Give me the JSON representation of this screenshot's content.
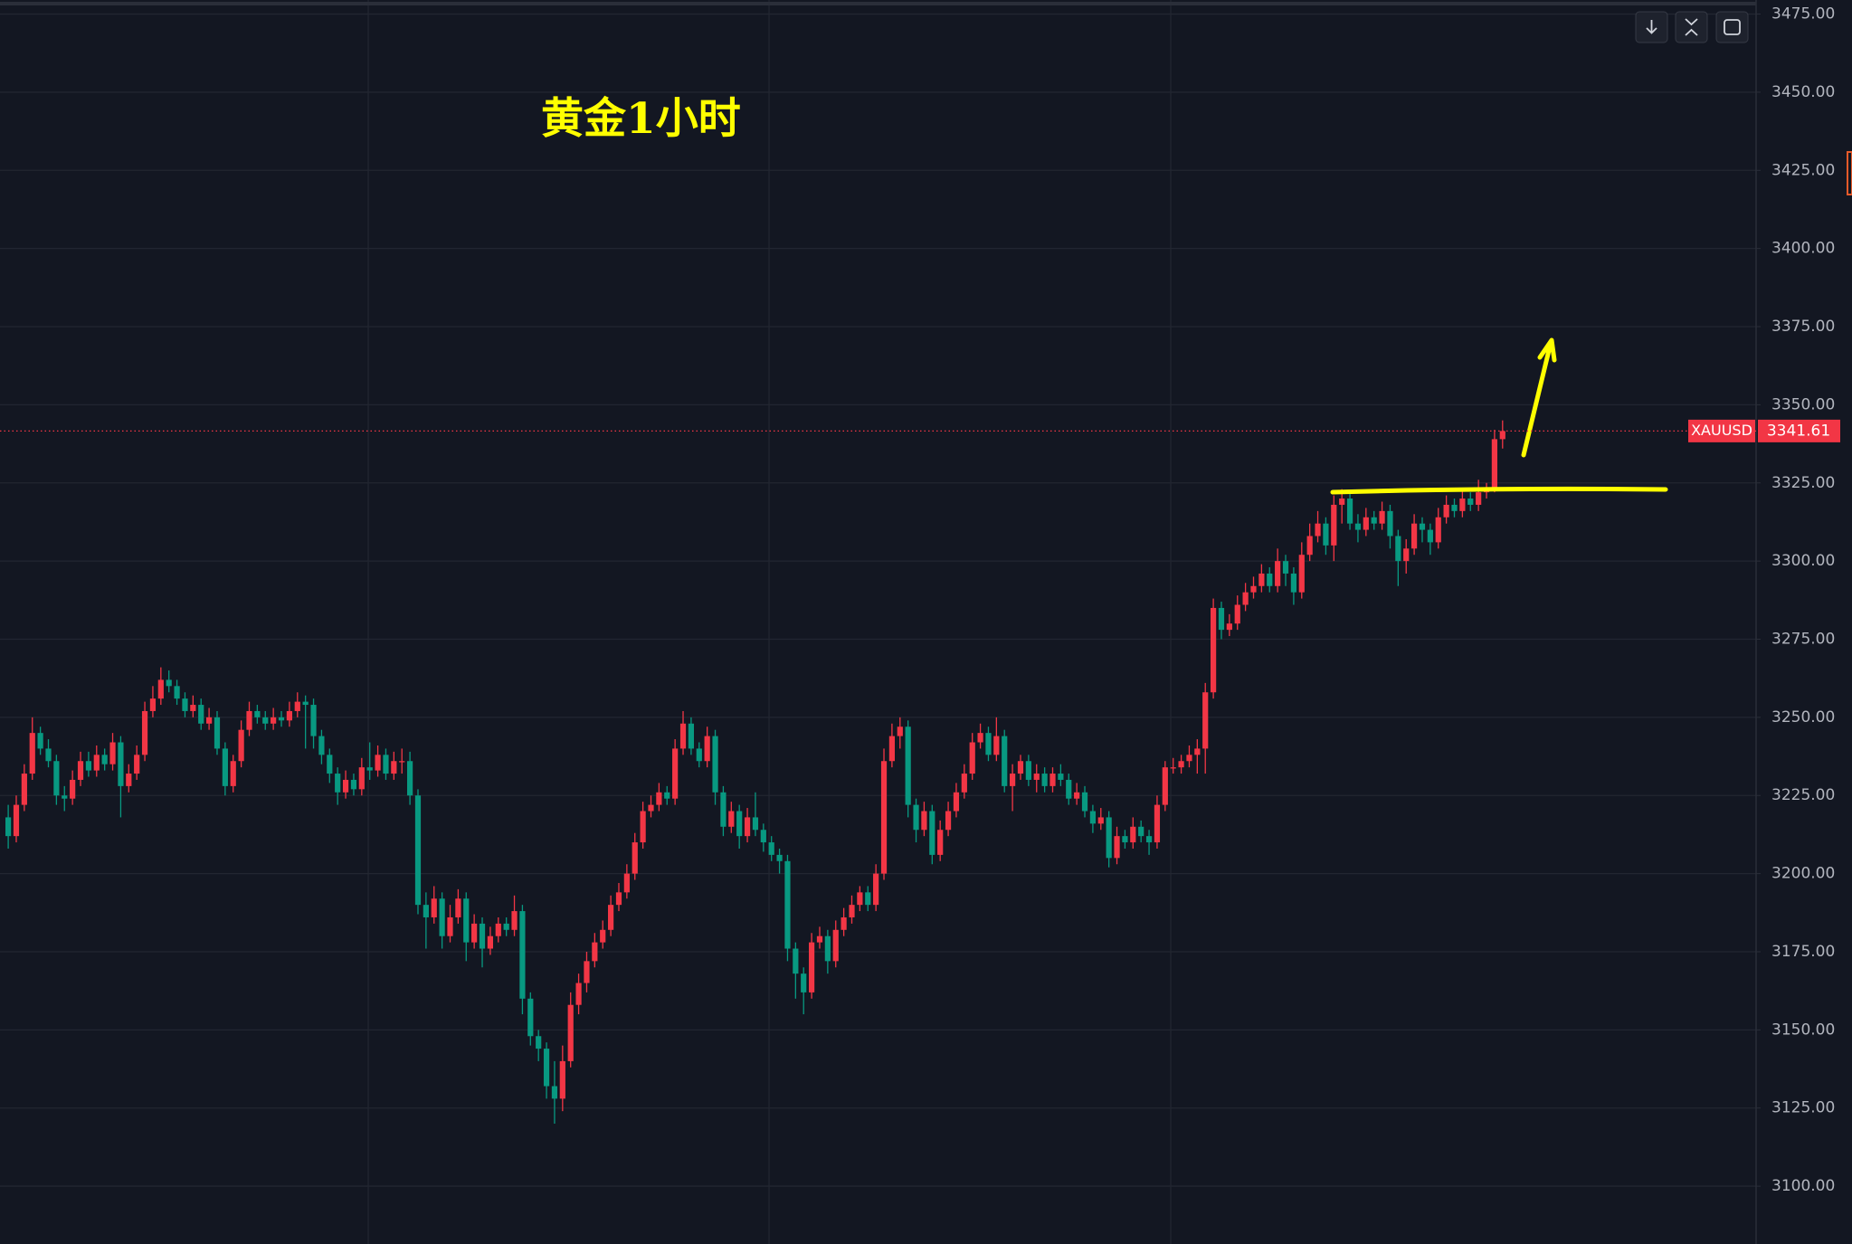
{
  "chart_data": {
    "type": "candlestick",
    "title": "黄金1小时",
    "symbol": "XAUUSD",
    "up_color": "#f23645",
    "down_color": "#089981",
    "grid": true,
    "ylim": [
      3081.5,
      3479.5
    ],
    "yticks": [
      {
        "value": 3100,
        "label": "3100.00"
      },
      {
        "value": 3125,
        "label": "3125.00"
      },
      {
        "value": 3150,
        "label": "3150.00"
      },
      {
        "value": 3175,
        "label": "3175.00"
      },
      {
        "value": 3200,
        "label": "3200.00"
      },
      {
        "value": 3225,
        "label": "3225.00"
      },
      {
        "value": 3250,
        "label": "3250.00"
      },
      {
        "value": 3275,
        "label": "3275.00"
      },
      {
        "value": 3300,
        "label": "3300.00"
      },
      {
        "value": 3325,
        "label": "3325.00"
      },
      {
        "value": 3350,
        "label": "3350.00"
      },
      {
        "value": 3375,
        "label": "3375.00"
      },
      {
        "value": 3400,
        "label": "3400.00"
      },
      {
        "value": 3425,
        "label": "3425.00"
      },
      {
        "value": 3450,
        "label": "3450.00"
      },
      {
        "value": 3475,
        "label": "3475.00"
      }
    ],
    "open": [
      3218,
      3212,
      3222,
      3232,
      3245,
      3240,
      3236,
      3225,
      3224,
      3230,
      3236,
      3233,
      3238,
      3235,
      3242,
      3228,
      3232,
      3238,
      3252,
      3256,
      3262,
      3260,
      3256,
      3252,
      3254,
      3248,
      3250,
      3240,
      3228,
      3236,
      3246,
      3252,
      3250,
      3248,
      3250,
      3249,
      3252,
      3255,
      3254,
      3244,
      3238,
      3232,
      3226,
      3230,
      3227,
      3234,
      3233,
      3238,
      3232,
      3236,
      3236,
      3225,
      3190,
      3186,
      3192,
      3180,
      3186,
      3192,
      3178,
      3184,
      3176,
      3180,
      3184,
      3182,
      3188,
      3160,
      3148,
      3144,
      3132,
      3128,
      3140,
      3158,
      3165,
      3172,
      3178,
      3182,
      3190,
      3194,
      3200,
      3210,
      3220,
      3222,
      3226,
      3224,
      3240,
      3248,
      3240,
      3236,
      3244,
      3226,
      3215,
      3220,
      3212,
      3218,
      3214,
      3210,
      3206,
      3204,
      3176,
      3168,
      3162,
      3178,
      3180,
      3172,
      3182,
      3186,
      3190,
      3194,
      3190,
      3200,
      3236,
      3244,
      3247,
      3222,
      3214,
      3220,
      3206,
      3214,
      3220,
      3226,
      3232,
      3242,
      3245,
      3238,
      3244,
      3228,
      3232,
      3236,
      3230,
      3232,
      3228,
      3232,
      3230,
      3224,
      3226,
      3220,
      3216,
      3218,
      3205,
      3212,
      3210,
      3215,
      3212,
      3210,
      3222,
      3234,
      3234,
      3236,
      3238,
      3240,
      3258,
      3285,
      3278,
      3280,
      3286,
      3290,
      3292,
      3296,
      3292,
      3300,
      3296,
      3290,
      3302,
      3308,
      3312,
      3305,
      3318,
      3320,
      3312,
      3310,
      3314,
      3312,
      3316,
      3308,
      3300,
      3304,
      3312,
      3310,
      3306,
      3314,
      3318,
      3316,
      3320,
      3318,
      3322,
      3323,
      3339
    ],
    "high": [
      3222,
      3225,
      3235,
      3250,
      3247,
      3243,
      3238,
      3228,
      3233,
      3239,
      3239,
      3241,
      3240,
      3245,
      3244,
      3235,
      3241,
      3255,
      3260,
      3266,
      3265,
      3262,
      3258,
      3257,
      3256,
      3253,
      3252,
      3242,
      3238,
      3249,
      3255,
      3254,
      3252,
      3253,
      3252,
      3255,
      3258,
      3257,
      3256,
      3246,
      3240,
      3234,
      3233,
      3232,
      3237,
      3242,
      3241,
      3240,
      3239,
      3240,
      3239,
      3227,
      3194,
      3196,
      3194,
      3190,
      3195,
      3194,
      3187,
      3186,
      3183,
      3186,
      3186,
      3193,
      3190,
      3162,
      3150,
      3146,
      3140,
      3145,
      3162,
      3168,
      3175,
      3181,
      3185,
      3193,
      3197,
      3203,
      3213,
      3223,
      3225,
      3229,
      3228,
      3243,
      3252,
      3250,
      3242,
      3247,
      3246,
      3228,
      3223,
      3222,
      3221,
      3226,
      3216,
      3212,
      3208,
      3206,
      3178,
      3170,
      3181,
      3183,
      3182,
      3185,
      3189,
      3193,
      3196,
      3196,
      3203,
      3240,
      3248,
      3250,
      3249,
      3224,
      3223,
      3222,
      3217,
      3223,
      3229,
      3235,
      3245,
      3248,
      3247,
      3250,
      3246,
      3235,
      3238,
      3238,
      3235,
      3234,
      3234,
      3235,
      3232,
      3229,
      3228,
      3222,
      3221,
      3220,
      3215,
      3214,
      3218,
      3217,
      3214,
      3225,
      3236,
      3237,
      3238,
      3241,
      3243,
      3261,
      3288,
      3287,
      3283,
      3289,
      3293,
      3295,
      3299,
      3298,
      3304,
      3302,
      3298,
      3306,
      3312,
      3316,
      3314,
      3321,
      3323,
      3322,
      3315,
      3317,
      3316,
      3319,
      3318,
      3310,
      3307,
      3315,
      3314,
      3312,
      3317,
      3321,
      3320,
      3323,
      3322,
      3326,
      3325,
      3342,
      3345
    ],
    "low": [
      3208,
      3210,
      3220,
      3230,
      3238,
      3234,
      3222,
      3220,
      3222,
      3228,
      3231,
      3231,
      3233,
      3233,
      3218,
      3226,
      3230,
      3236,
      3250,
      3254,
      3258,
      3254,
      3250,
      3250,
      3246,
      3246,
      3238,
      3225,
      3226,
      3234,
      3244,
      3248,
      3246,
      3246,
      3247,
      3247,
      3250,
      3240,
      3240,
      3235,
      3229,
      3222,
      3224,
      3225,
      3225,
      3230,
      3231,
      3230,
      3230,
      3232,
      3222,
      3187,
      3176,
      3184,
      3176,
      3178,
      3184,
      3172,
      3176,
      3170,
      3174,
      3178,
      3180,
      3180,
      3155,
      3145,
      3140,
      3128,
      3120,
      3124,
      3138,
      3155,
      3162,
      3170,
      3176,
      3180,
      3188,
      3192,
      3198,
      3208,
      3218,
      3220,
      3222,
      3222,
      3238,
      3238,
      3234,
      3234,
      3222,
      3212,
      3213,
      3208,
      3210,
      3212,
      3207,
      3204,
      3200,
      3172,
      3160,
      3155,
      3160,
      3176,
      3168,
      3170,
      3180,
      3184,
      3188,
      3188,
      3188,
      3198,
      3234,
      3240,
      3218,
      3210,
      3212,
      3203,
      3204,
      3212,
      3218,
      3224,
      3230,
      3240,
      3236,
      3236,
      3226,
      3220,
      3230,
      3228,
      3226,
      3226,
      3226,
      3228,
      3222,
      3222,
      3218,
      3213,
      3214,
      3202,
      3203,
      3208,
      3208,
      3210,
      3206,
      3208,
      3220,
      3232,
      3232,
      3234,
      3232,
      3232,
      3256,
      3275,
      3276,
      3278,
      3284,
      3288,
      3290,
      3290,
      3290,
      3292,
      3286,
      3288,
      3300,
      3306,
      3302,
      3300,
      3312,
      3310,
      3306,
      3308,
      3310,
      3310,
      3304,
      3292,
      3296,
      3302,
      3306,
      3302,
      3304,
      3312,
      3314,
      3314,
      3316,
      3316,
      3320,
      3322,
      3336
    ],
    "close": [
      3212,
      3222,
      3232,
      3245,
      3240,
      3236,
      3225,
      3224,
      3230,
      3236,
      3233,
      3238,
      3235,
      3242,
      3228,
      3232,
      3238,
      3252,
      3256,
      3262,
      3260,
      3256,
      3252,
      3254,
      3248,
      3250,
      3240,
      3228,
      3236,
      3246,
      3252,
      3250,
      3248,
      3250,
      3249,
      3252,
      3255,
      3254,
      3244,
      3238,
      3232,
      3226,
      3230,
      3227,
      3234,
      3233,
      3238,
      3232,
      3236,
      3236,
      3225,
      3190,
      3186,
      3192,
      3180,
      3186,
      3192,
      3178,
      3184,
      3176,
      3180,
      3184,
      3182,
      3188,
      3160,
      3148,
      3144,
      3132,
      3128,
      3140,
      3158,
      3165,
      3172,
      3178,
      3182,
      3190,
      3194,
      3200,
      3210,
      3220,
      3222,
      3226,
      3224,
      3240,
      3248,
      3240,
      3236,
      3244,
      3226,
      3215,
      3220,
      3212,
      3218,
      3214,
      3210,
      3206,
      3204,
      3176,
      3168,
      3162,
      3178,
      3180,
      3172,
      3182,
      3186,
      3190,
      3194,
      3190,
      3200,
      3236,
      3244,
      3247,
      3222,
      3214,
      3220,
      3206,
      3214,
      3220,
      3226,
      3232,
      3242,
      3245,
      3238,
      3244,
      3228,
      3232,
      3236,
      3230,
      3232,
      3228,
      3232,
      3230,
      3224,
      3226,
      3220,
      3216,
      3218,
      3205,
      3212,
      3210,
      3215,
      3212,
      3210,
      3222,
      3234,
      3234,
      3236,
      3238,
      3240,
      3258,
      3285,
      3278,
      3280,
      3286,
      3290,
      3292,
      3296,
      3292,
      3300,
      3296,
      3290,
      3302,
      3308,
      3312,
      3305,
      3318,
      3320,
      3312,
      3310,
      3314,
      3312,
      3316,
      3308,
      3300,
      3304,
      3312,
      3310,
      3306,
      3314,
      3318,
      3316,
      3320,
      3318,
      3322,
      3323,
      3339,
      3341.61
    ]
  }
}
